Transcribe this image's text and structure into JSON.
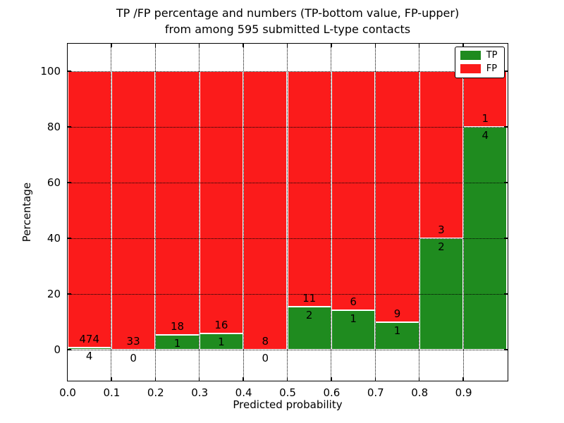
{
  "chart_data": {
    "type": "bar",
    "stacked": true,
    "title_line1": "TP /FP percentage and numbers (TP-bottom value, FP-upper)",
    "title_line2": "from among 595 submitted L-type contacts",
    "xlabel": "Predicted probability",
    "ylabel": "Percentage",
    "xlim": [
      0.0,
      1.0
    ],
    "ylim": [
      -11,
      110
    ],
    "grid": "dotted",
    "legend_position": "upper right",
    "bin_edges": [
      0.0,
      0.1,
      0.2,
      0.3,
      0.4,
      0.5,
      0.6,
      0.7,
      0.8,
      0.9,
      1.0
    ],
    "x_ticks": [
      0.0,
      0.1,
      0.2,
      0.3,
      0.4,
      0.5,
      0.6,
      0.7,
      0.8,
      0.9
    ],
    "x_tick_labels": [
      "0.0",
      "0.1",
      "0.2",
      "0.3",
      "0.4",
      "0.5",
      "0.6",
      "0.7",
      "0.8",
      "0.9"
    ],
    "y_ticks": [
      0,
      20,
      40,
      60,
      80,
      100
    ],
    "y_tick_labels": [
      "0",
      "20",
      "40",
      "60",
      "80",
      "100"
    ],
    "series": [
      {
        "name": "TP",
        "color": "#1f8b1f",
        "values": [
          4,
          0,
          1,
          1,
          0,
          2,
          1,
          1,
          2,
          4
        ]
      },
      {
        "name": "FP",
        "color": "#fb1b1b",
        "values": [
          474,
          33,
          18,
          16,
          8,
          11,
          6,
          9,
          3,
          1
        ]
      }
    ],
    "bar_value_unit": "percent of bin total (TP green bottom, FP red top)"
  }
}
